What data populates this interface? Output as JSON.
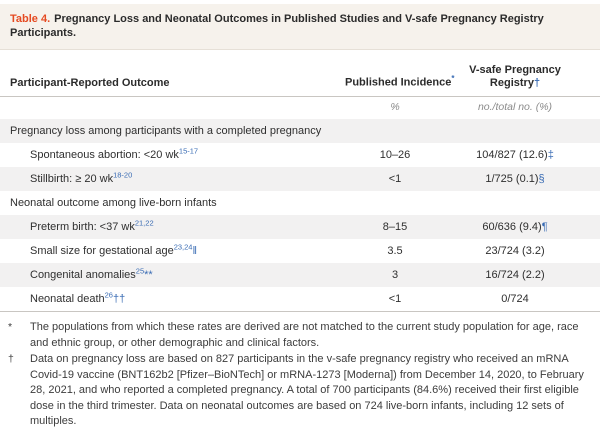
{
  "title": {
    "label": "Table 4.",
    "text": "Pregnancy Loss and Neonatal Outcomes in Published Studies and V-safe Pregnancy Registry Participants."
  },
  "table": {
    "columns": {
      "outcome": "Participant-Reported Outcome",
      "published": "Published Incidence",
      "published_marker": "*",
      "vsafe": "V-safe Pregnancy Registry",
      "vsafe_marker": "†",
      "published_units": "%",
      "vsafe_units": "no./total no. (%)"
    },
    "rows": [
      {
        "type": "category",
        "label": "Pregnancy loss among participants with a completed pregnancy",
        "ref": "",
        "label_sym": "",
        "published": "",
        "vsafe": "",
        "vsafe_sym": "",
        "shaded": true
      },
      {
        "type": "item",
        "label": "Spontaneous abortion: <20 wk",
        "ref": "15-17",
        "label_sym": "",
        "published": "10–26",
        "vsafe": "104/827 (12.6)",
        "vsafe_sym": "‡",
        "shaded": false
      },
      {
        "type": "item",
        "label": "Stillbirth: ≥ 20 wk",
        "ref": "18-20",
        "label_sym": "",
        "published": "<1",
        "vsafe": "1/725 (0.1)",
        "vsafe_sym": "§",
        "shaded": true
      },
      {
        "type": "category",
        "label": "Neonatal outcome among live-born infants",
        "ref": "",
        "label_sym": "",
        "published": "",
        "vsafe": "",
        "vsafe_sym": "",
        "shaded": false
      },
      {
        "type": "item",
        "label": "Preterm birth: <37 wk",
        "ref": "21,22",
        "label_sym": "",
        "published": "8–15",
        "vsafe": "60/636 (9.4)",
        "vsafe_sym": "¶",
        "shaded": true
      },
      {
        "type": "item",
        "label": "Small size for gestational age",
        "ref": "23,24",
        "label_sym": "‖",
        "published": "3.5",
        "vsafe": "23/724 (3.2)",
        "vsafe_sym": "",
        "shaded": false
      },
      {
        "type": "item",
        "label": "Congenital anomalies",
        "ref": "25",
        "label_sym": "**",
        "published": "3",
        "vsafe": "16/724 (2.2)",
        "vsafe_sym": "",
        "shaded": true
      },
      {
        "type": "item",
        "label": "Neonatal death",
        "ref": "26",
        "label_sym": "††",
        "published": "<1",
        "vsafe": "0/724",
        "vsafe_sym": "",
        "shaded": false
      }
    ]
  },
  "footnotes": [
    {
      "marker": "*",
      "text": "The populations from which these rates are derived are not matched to the current study population for age, race and ethnic group, or other demographic and clinical factors."
    },
    {
      "marker": "†",
      "text": "Data on pregnancy loss are based on 827 participants in the v-safe pregnancy registry who received an mRNA Covid-19 vaccine (BNT162b2 [Pfizer–BioNTech] or mRNA-1273 [Moderna]) from December 14, 2020, to February 28, 2021, and who reported a completed pregnancy. A total of 700 participants (84.6%) received their first eligible dose in the third trimester. Data on neonatal outcomes are based on 724 live-born infants, including 12 sets of multiples."
    }
  ],
  "colors": {
    "accent_red": "#e54b22",
    "link_blue": "#3a6cb4",
    "title_bar_bg": "#f6f2ec",
    "shaded_row_bg": "#f2f1f1",
    "text": "#2f2f2f"
  }
}
